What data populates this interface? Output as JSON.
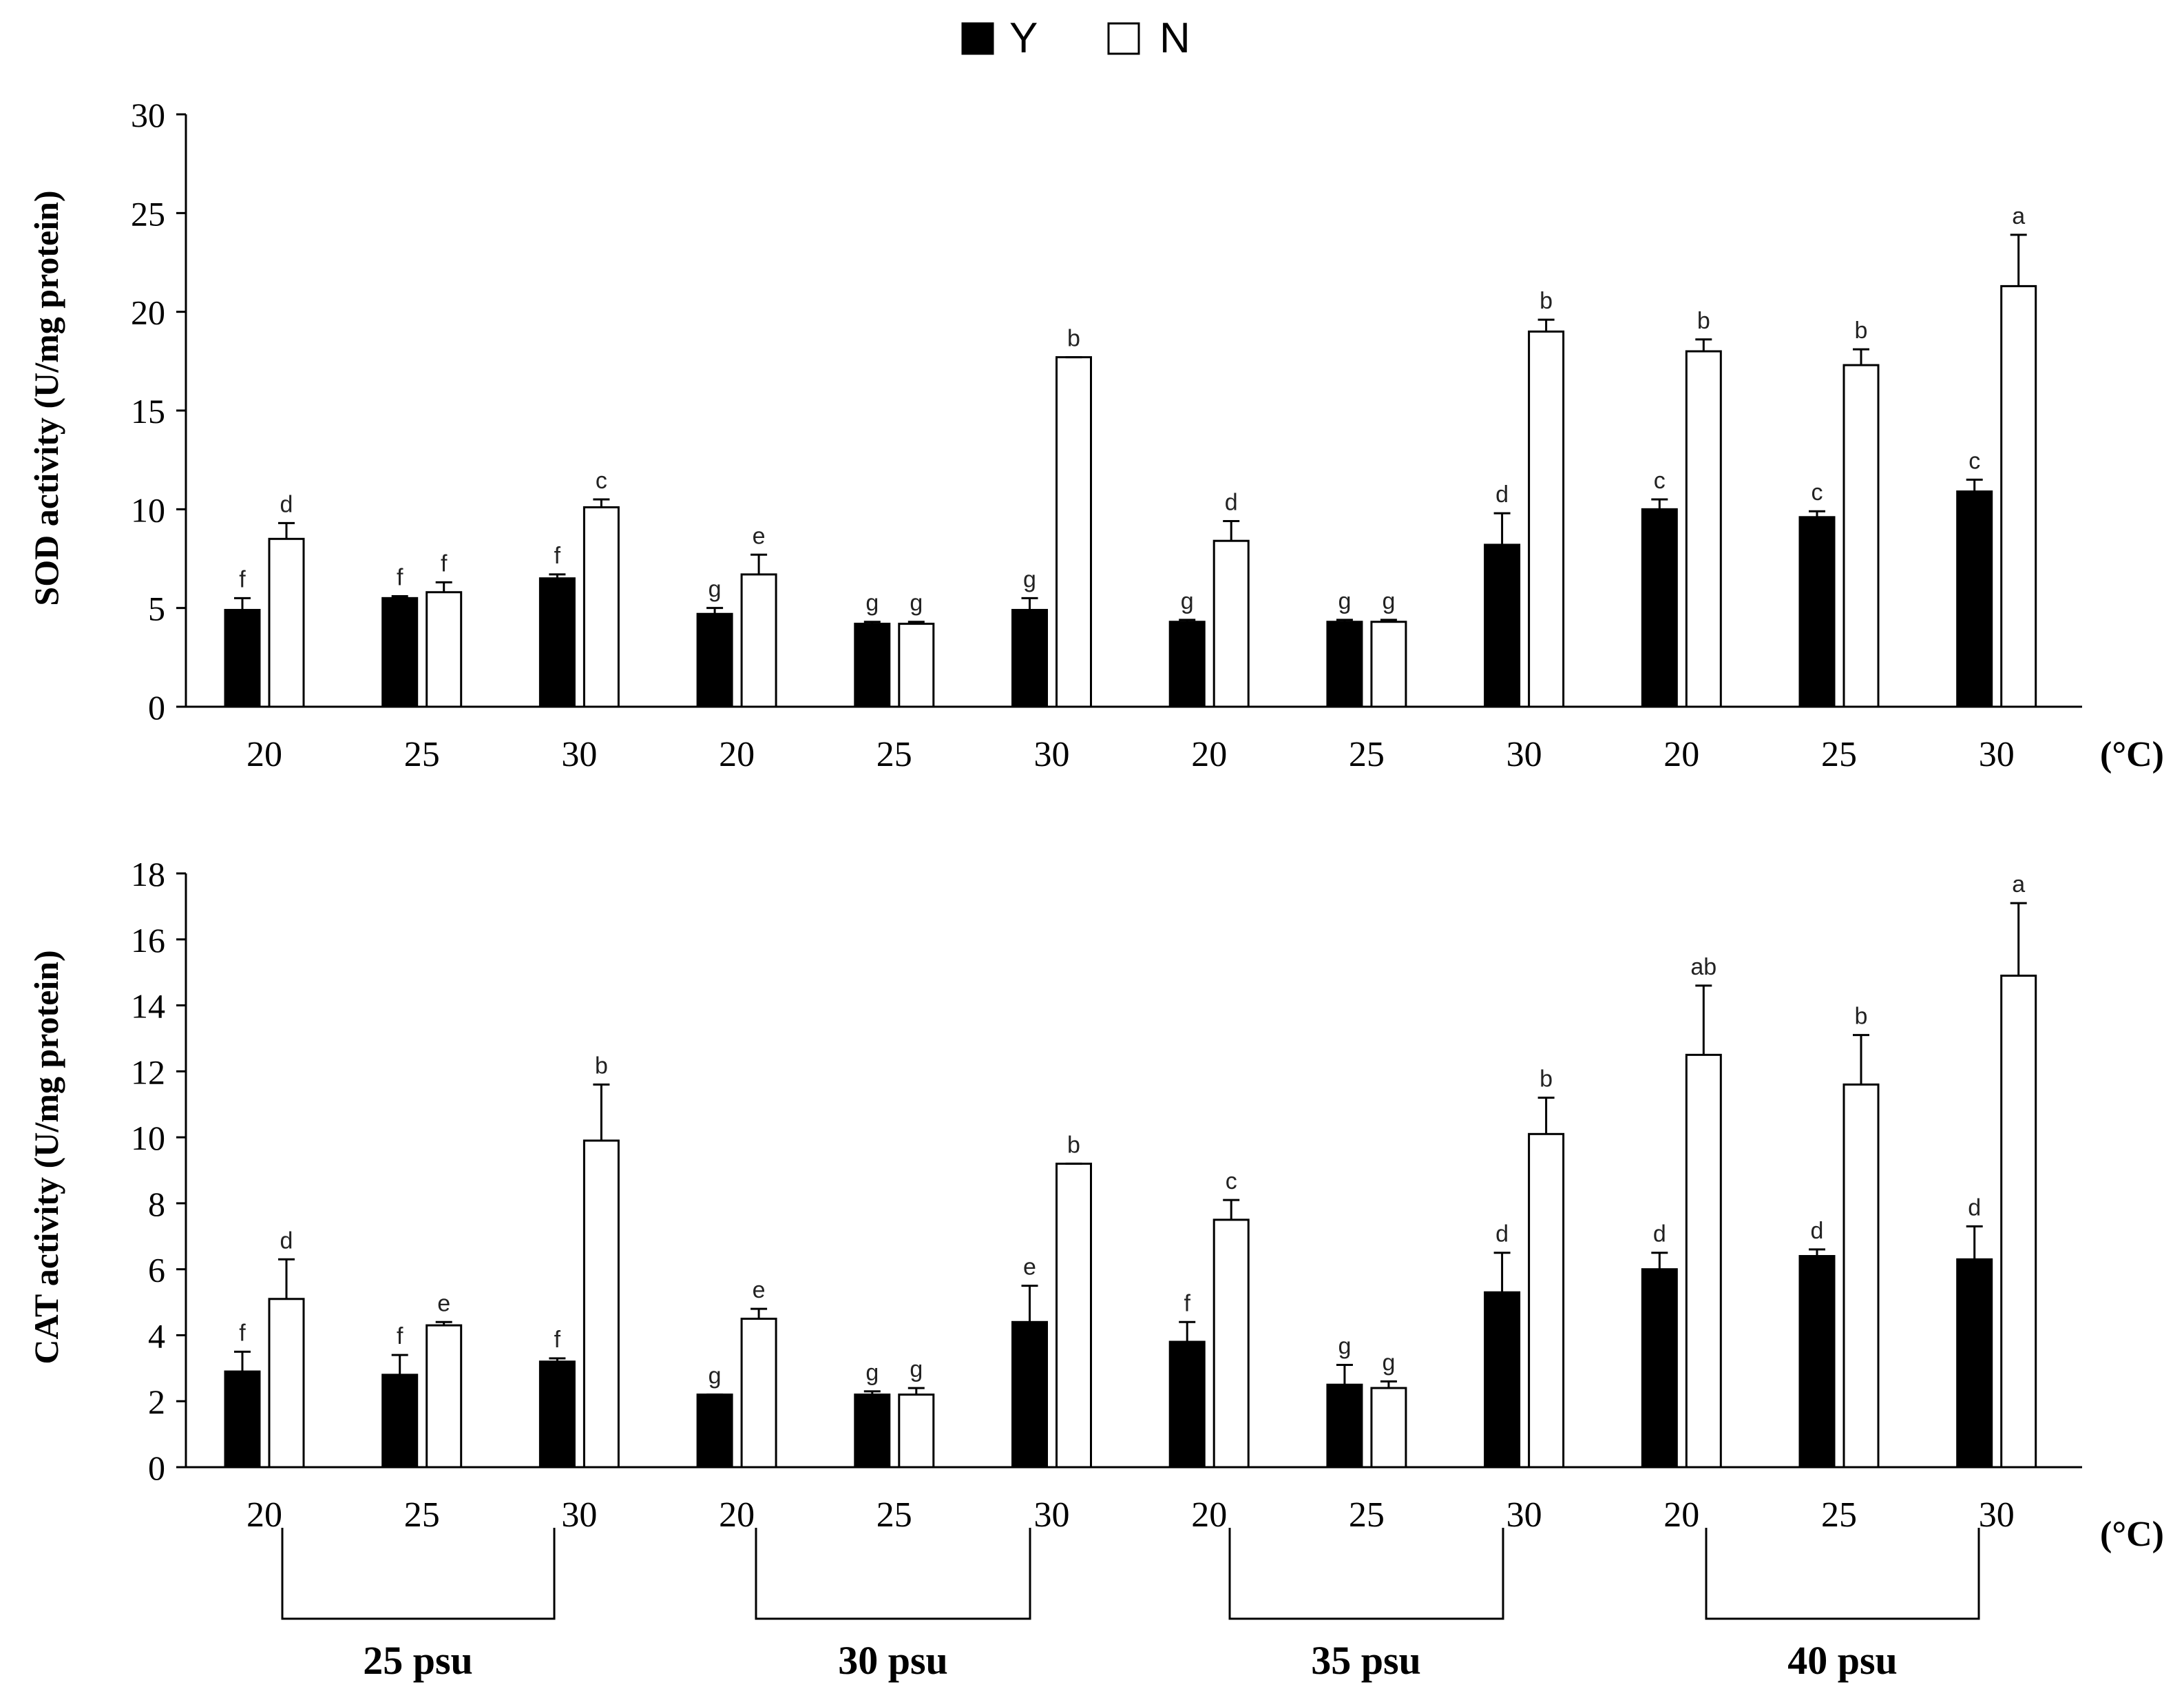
{
  "legend": {
    "items": [
      {
        "label": "Y",
        "fill": "#000000"
      },
      {
        "label": "N",
        "fill": "#ffffff"
      }
    ]
  },
  "unit_label": "(°C)",
  "groups": [
    "25 psu",
    "30 psu",
    "35 psu",
    "40 psu"
  ],
  "chart_data": [
    {
      "type": "bar",
      "title": "",
      "ylabel": "SOD activity (U/mg protein)",
      "xlabel": "(°C)",
      "ylim": [
        0,
        30
      ],
      "yticks": [
        0,
        5,
        10,
        15,
        20,
        25,
        30
      ],
      "categories": [
        "20",
        "25",
        "30",
        "20",
        "25",
        "30",
        "20",
        "25",
        "30",
        "20",
        "25",
        "30"
      ],
      "category_groups": [
        "25 psu",
        "25 psu",
        "25 psu",
        "30 psu",
        "30 psu",
        "30 psu",
        "35 psu",
        "35 psu",
        "35 psu",
        "40 psu",
        "40 psu",
        "40 psu"
      ],
      "series": [
        {
          "name": "Y",
          "values": [
            4.9,
            5.5,
            6.5,
            4.7,
            4.2,
            4.9,
            4.3,
            4.3,
            8.2,
            10.0,
            9.6,
            10.9
          ],
          "errors": [
            0.6,
            0.1,
            0.2,
            0.3,
            0.1,
            0.6,
            0.1,
            0.1,
            1.6,
            0.5,
            0.3,
            0.6
          ],
          "labels": [
            "f",
            "f",
            "f",
            "g",
            "g",
            "g",
            "g",
            "g",
            "d",
            "c",
            "c",
            "c"
          ]
        },
        {
          "name": "N",
          "values": [
            8.5,
            5.8,
            10.1,
            6.7,
            4.2,
            17.7,
            8.4,
            4.3,
            19.0,
            18.0,
            17.3,
            21.3
          ],
          "errors": [
            0.8,
            0.5,
            0.4,
            1.0,
            0.1,
            0.0,
            1.0,
            0.1,
            0.6,
            0.6,
            0.8,
            2.6
          ],
          "labels": [
            "d",
            "f",
            "c",
            "e",
            "g",
            "b",
            "d",
            "g",
            "b",
            "b",
            "b",
            "a"
          ]
        }
      ]
    },
    {
      "type": "bar",
      "title": "",
      "ylabel": "CAT activity (U/mg protein)",
      "xlabel": "(°C)",
      "ylim": [
        0,
        18
      ],
      "yticks": [
        0,
        2,
        4,
        6,
        8,
        10,
        12,
        14,
        16,
        18
      ],
      "categories": [
        "20",
        "25",
        "30",
        "20",
        "25",
        "30",
        "20",
        "25",
        "30",
        "20",
        "25",
        "30"
      ],
      "category_groups": [
        "25 psu",
        "25 psu",
        "25 psu",
        "30 psu",
        "30 psu",
        "30 psu",
        "35 psu",
        "35 psu",
        "35 psu",
        "40 psu",
        "40 psu",
        "40 psu"
      ],
      "series": [
        {
          "name": "Y",
          "values": [
            2.9,
            2.8,
            3.2,
            2.2,
            2.2,
            4.4,
            3.8,
            2.5,
            5.3,
            6.0,
            6.4,
            6.3
          ],
          "errors": [
            0.6,
            0.6,
            0.1,
            0.0,
            0.1,
            1.1,
            0.6,
            0.6,
            1.2,
            0.5,
            0.2,
            1.0
          ],
          "labels": [
            "f",
            "f",
            "f",
            "g",
            "g",
            "e",
            "f",
            "g",
            "d",
            "d",
            "d",
            "d"
          ]
        },
        {
          "name": "N",
          "values": [
            5.1,
            4.3,
            9.9,
            4.5,
            2.2,
            9.2,
            7.5,
            2.4,
            10.1,
            12.5,
            11.6,
            14.9
          ],
          "errors": [
            1.2,
            0.1,
            1.7,
            0.3,
            0.2,
            0.0,
            0.6,
            0.2,
            1.1,
            2.1,
            1.5,
            2.2
          ],
          "labels": [
            "d",
            "e",
            "b",
            "e",
            "g",
            "b",
            "c",
            "g",
            "b",
            "ab",
            "b",
            "a"
          ]
        }
      ]
    }
  ]
}
